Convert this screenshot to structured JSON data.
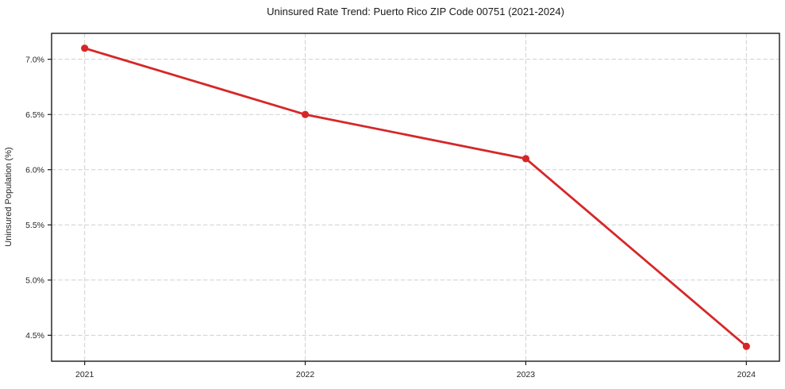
{
  "chart_data": {
    "type": "line",
    "title": "Uninsured Rate Trend: Puerto Rico ZIP Code 00751 (2021-2024)",
    "xlabel": "",
    "ylabel": "Uninsured Population (%)",
    "x": [
      2021,
      2022,
      2023,
      2024
    ],
    "series": [
      {
        "name": "Uninsured Population (%)",
        "values": [
          7.1,
          6.5,
          6.1,
          4.4
        ],
        "color": "#d62728",
        "marker": "circle"
      }
    ],
    "xlim": [
      2020.85,
      2024.15
    ],
    "ylim": [
      4.265,
      7.235
    ],
    "xticks": {
      "values": [
        2021,
        2022,
        2023,
        2024
      ],
      "labels": [
        "2021",
        "2022",
        "2023",
        "2024"
      ]
    },
    "yticks": {
      "values": [
        4.5,
        5.0,
        5.5,
        6.0,
        6.5,
        7.0
      ],
      "labels": [
        "4.5%",
        "5.0%",
        "5.5%",
        "6.0%",
        "6.5%",
        "7.0%"
      ]
    },
    "grid": {
      "show": true,
      "style": "dashed"
    },
    "legend": "none",
    "colors": {
      "line": "#d62728",
      "grid": "#cfcfcf",
      "spine": "#1a1a1a",
      "tick_text": "#262626",
      "title_text": "#1a1a1a",
      "background": "#ffffff"
    }
  }
}
